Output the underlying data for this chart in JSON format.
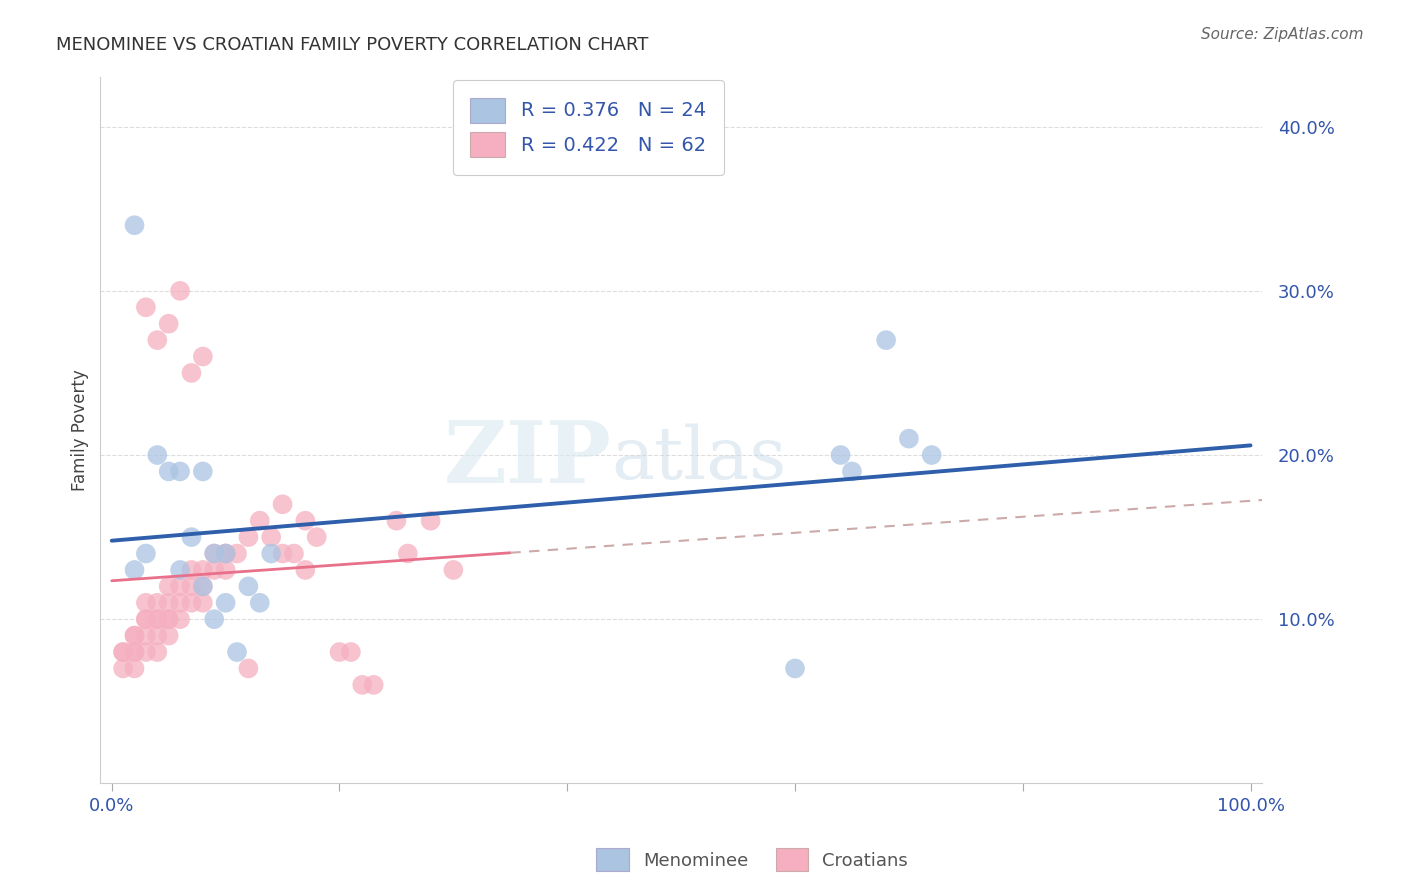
{
  "title": "MENOMINEE VS CROATIAN FAMILY POVERTY CORRELATION CHART",
  "source": "Source: ZipAtlas.com",
  "ylabel": "Family Poverty",
  "xlim": [
    -1,
    101
  ],
  "ylim": [
    0,
    43
  ],
  "menominee_R": 0.376,
  "menominee_N": 24,
  "croatian_R": 0.422,
  "croatian_N": 62,
  "menominee_color": "#aac4e2",
  "croatian_color": "#f5afc0",
  "trend_menominee_color": "#2f5faa",
  "trend_croatian_color": "#e8708a",
  "legend_label_menominee": "Menominee",
  "legend_label_croatian": "Croatians",
  "watermark_zip": "ZIP",
  "watermark_atlas": "atlas",
  "menominee_x": [
    2,
    2,
    3,
    4,
    5,
    6,
    6,
    7,
    8,
    8,
    9,
    9,
    10,
    10,
    11,
    12,
    13,
    14,
    60,
    64,
    65,
    68,
    70,
    72
  ],
  "menominee_y": [
    34,
    13,
    14,
    20,
    19,
    19,
    13,
    15,
    19,
    12,
    10,
    14,
    11,
    14,
    8,
    12,
    11,
    14,
    7,
    20,
    19,
    27,
    21,
    20
  ],
  "croatian_x": [
    1,
    1,
    1,
    2,
    2,
    2,
    2,
    2,
    3,
    3,
    3,
    3,
    3,
    4,
    4,
    4,
    4,
    4,
    5,
    5,
    5,
    5,
    5,
    6,
    6,
    6,
    7,
    7,
    7,
    8,
    8,
    8,
    9,
    9,
    10,
    10,
    11,
    12,
    13,
    14,
    15,
    16,
    17,
    18,
    20,
    21,
    22,
    23,
    25,
    26,
    28,
    30,
    3,
    4,
    5,
    6,
    7,
    8,
    10,
    12,
    15,
    17
  ],
  "croatian_y": [
    8,
    7,
    8,
    9,
    8,
    9,
    8,
    7,
    10,
    9,
    10,
    11,
    8,
    10,
    9,
    10,
    11,
    8,
    11,
    10,
    10,
    9,
    12,
    11,
    12,
    10,
    12,
    11,
    13,
    12,
    11,
    13,
    13,
    14,
    13,
    14,
    14,
    15,
    16,
    15,
    17,
    14,
    16,
    15,
    8,
    8,
    6,
    6,
    16,
    14,
    16,
    13,
    29,
    27,
    28,
    30,
    25,
    26,
    14,
    7,
    14,
    13
  ]
}
